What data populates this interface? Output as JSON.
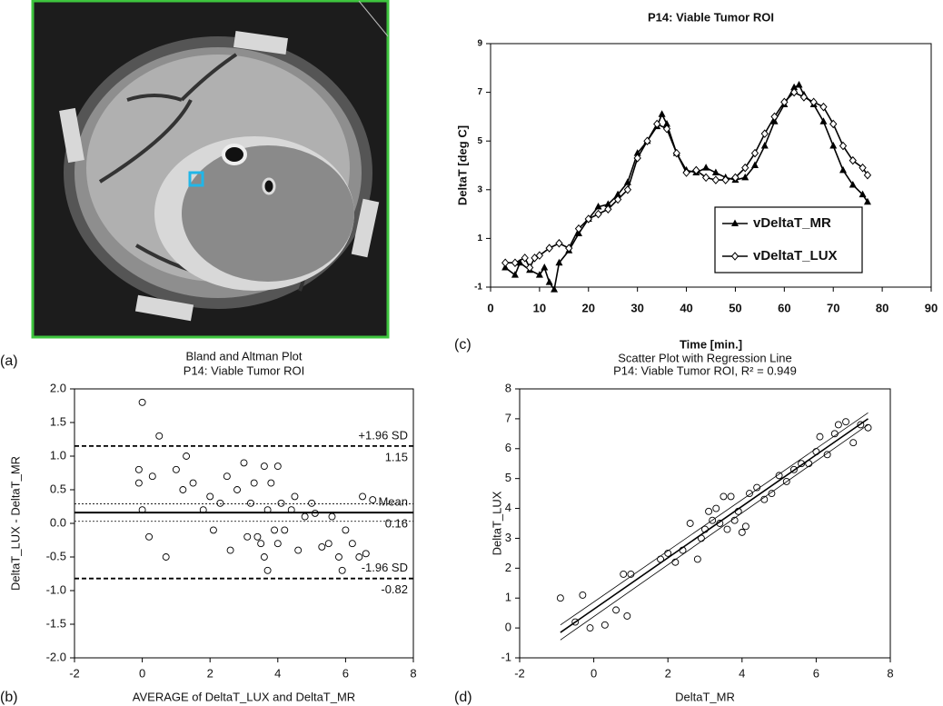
{
  "image_panel": {
    "panel_label": "(a)"
  },
  "chart_data": [
    {
      "type": "line",
      "panel_label": "(c)",
      "title": "P14: Viable Tumor ROI",
      "x_label": "Time [min.]",
      "y_label": "DeltaT [deg C]",
      "xlim": [
        0,
        90
      ],
      "xticks": [
        0,
        10,
        20,
        30,
        40,
        50,
        60,
        70,
        80,
        90
      ],
      "ylim": [
        -1,
        9
      ],
      "yticks": [
        -1,
        1,
        3,
        5,
        7,
        9
      ],
      "legend": "lower right",
      "series": [
        {
          "name": "vDeltaT_MR",
          "color": "#000000",
          "marker": "triangle",
          "x": [
            3,
            5,
            6,
            8,
            10,
            11,
            12,
            13,
            14,
            16,
            18,
            20,
            22,
            24,
            26,
            28,
            30,
            32,
            34,
            35,
            36,
            38,
            40,
            42,
            44,
            46,
            48,
            50,
            52,
            54,
            56,
            58,
            60,
            62,
            63,
            64,
            66,
            68,
            70,
            72,
            74,
            76,
            77
          ],
          "values": [
            -0.2,
            -0.5,
            0,
            -0.3,
            -0.5,
            -0.2,
            -0.8,
            -1.1,
            0,
            0.5,
            1.2,
            1.8,
            2.3,
            2.4,
            2.8,
            3.3,
            4.5,
            5,
            5.6,
            6.1,
            5.7,
            4.5,
            3.8,
            3.7,
            3.9,
            3.7,
            3.5,
            3.4,
            3.5,
            4,
            4.8,
            5.8,
            6.5,
            7.2,
            7.3,
            6.9,
            6.5,
            5.8,
            4.8,
            3.8,
            3.2,
            2.8,
            2.5
          ]
        },
        {
          "name": "vDeltaT_LUX",
          "color": "#000000",
          "marker": "diamond",
          "x": [
            3,
            5,
            7,
            8,
            9,
            10,
            12,
            14,
            16,
            18,
            20,
            22,
            24,
            26,
            28,
            30,
            32,
            34,
            36,
            38,
            40,
            42,
            44,
            46,
            48,
            50,
            52,
            54,
            56,
            58,
            60,
            62,
            64,
            66,
            68,
            70,
            72,
            74,
            76,
            77
          ],
          "values": [
            0,
            0,
            0.2,
            -0.2,
            0.2,
            0.3,
            0.6,
            0.8,
            0.6,
            1.4,
            1.8,
            2,
            2.2,
            2.6,
            3,
            4.3,
            5,
            5.7,
            5.5,
            4.5,
            3.7,
            3.8,
            3.5,
            3.4,
            3.4,
            3.5,
            3.9,
            4.5,
            5.3,
            6,
            6.6,
            7,
            6.8,
            6.6,
            6.4,
            5.7,
            4.8,
            4.2,
            3.9,
            3.6
          ]
        }
      ]
    },
    {
      "type": "scatter",
      "panel_label": "(b)",
      "title": "Bland and Altman Plot",
      "subtitle": "P14: Viable Tumor ROI",
      "x_label": "AVERAGE of DeltaT_LUX and DeltaT_MR",
      "y_label": "DeltaT_LUX - DeltaT_MR",
      "xlim": [
        -2,
        8
      ],
      "xticks": [
        -2,
        0,
        2,
        4,
        6,
        8
      ],
      "ylim": [
        -2,
        2
      ],
      "yticks": [
        {
          "value": 2,
          "label": "2.0"
        },
        1.5,
        {
          "value": 1,
          "label": "1.0"
        },
        0.5,
        {
          "value": 0,
          "label": "0.0"
        },
        -0.5,
        {
          "value": -1,
          "label": "-1.0"
        },
        -1.5,
        {
          "value": -2,
          "label": "-2.0"
        }
      ],
      "series": [
        {
          "color": "#000000",
          "marker": "circle",
          "x": [
            -0.1,
            -0.1,
            0,
            0,
            0.2,
            0.3,
            0.5,
            0.7,
            1,
            1.2,
            1.3,
            1.5,
            1.8,
            2,
            2.1,
            2.3,
            2.5,
            2.6,
            2.8,
            3,
            3.1,
            3.2,
            3.3,
            3.4,
            3.5,
            3.6,
            3.6,
            3.7,
            3.7,
            3.8,
            3.9,
            4,
            4,
            4.1,
            4.2,
            4.4,
            4.5,
            4.6,
            4.8,
            5,
            5.1,
            5.3,
            5.5,
            5.6,
            5.8,
            5.9,
            6,
            6.2,
            6.4,
            6.5,
            6.6,
            6.8
          ],
          "values": [
            0.6,
            0.8,
            0.2,
            1.8,
            -0.2,
            0.7,
            1.3,
            -0.5,
            0.8,
            0.5,
            1,
            0.6,
            0.2,
            0.4,
            -0.1,
            0.3,
            0.7,
            -0.4,
            0.5,
            0.9,
            -0.2,
            0.3,
            0.6,
            -0.2,
            -0.3,
            0.85,
            -0.5,
            -0.7,
            0.2,
            0.6,
            -0.1,
            0.85,
            -0.3,
            0.3,
            -0.1,
            0.2,
            0.4,
            -0.4,
            0.1,
            0.3,
            0.15,
            -0.35,
            -0.3,
            0.1,
            -0.5,
            -0.7,
            -0.1,
            -0.3,
            -0.5,
            0.4,
            -0.45,
            0.35
          ]
        }
      ],
      "reference_lines": [
        {
          "value": 1.15,
          "style": "dashed",
          "label": "+1.96 SD"
        },
        {
          "value": 0.29,
          "style": "dotted"
        },
        {
          "value": 0.16,
          "style": "solid",
          "label": "Mean"
        },
        {
          "value": 0.03,
          "style": "dotted"
        },
        {
          "value": -0.82,
          "style": "dashed",
          "label": "-1.96 SD"
        }
      ]
    },
    {
      "type": "scatter",
      "panel_label": "(d)",
      "title": "Scatter Plot with Regression Line",
      "subtitle": "P14: Viable Tumor ROI,  R² = 0.949",
      "x_label": "DeltaT_MR",
      "y_label": "DeltaT_LUX",
      "xlim": [
        -2,
        8
      ],
      "xticks": [
        -2,
        0,
        2,
        4,
        6,
        8
      ],
      "ylim": [
        -1,
        8
      ],
      "yticks": [
        -1,
        0,
        1,
        2,
        3,
        4,
        5,
        6,
        7,
        8
      ],
      "series": [
        {
          "color": "#000000",
          "marker": "circle",
          "x": [
            -0.9,
            -0.5,
            -0.3,
            -0.1,
            0.3,
            0.6,
            0.8,
            0.9,
            1,
            1.8,
            2,
            2.2,
            2.4,
            2.6,
            2.8,
            2.9,
            3,
            3.1,
            3.2,
            3.3,
            3.4,
            3.5,
            3.6,
            3.7,
            3.8,
            3.9,
            4,
            4.1,
            4.2,
            4.4,
            4.6,
            4.8,
            5,
            5.2,
            5.4,
            5.6,
            5.8,
            6,
            6.1,
            6.3,
            6.5,
            6.6,
            6.8,
            7,
            7.2,
            7.4
          ],
          "values": [
            1,
            0.2,
            1.1,
            0,
            0.1,
            0.6,
            1.8,
            0.4,
            1.8,
            2.3,
            2.5,
            2.2,
            2.6,
            3.5,
            2.3,
            3,
            3.3,
            3.9,
            3.6,
            4,
            3.5,
            4.4,
            3.3,
            4.4,
            3.6,
            3.9,
            3.2,
            3.4,
            4.5,
            4.7,
            4.3,
            4.5,
            5.1,
            4.9,
            5.3,
            5.5,
            5.5,
            5.9,
            6.4,
            5.8,
            6.5,
            6.8,
            6.9,
            6.2,
            6.8,
            6.7
          ]
        }
      ],
      "regression_lines": [
        {
          "style": "solid",
          "x": [
            -0.9,
            7.4
          ],
          "values": [
            -0.15,
            7
          ]
        },
        {
          "style": "thin",
          "x": [
            -0.9,
            7.4
          ],
          "values": [
            0.1,
            7.2
          ]
        },
        {
          "style": "thin",
          "x": [
            -0.9,
            7.4
          ],
          "values": [
            -0.4,
            6.8
          ]
        }
      ]
    }
  ]
}
